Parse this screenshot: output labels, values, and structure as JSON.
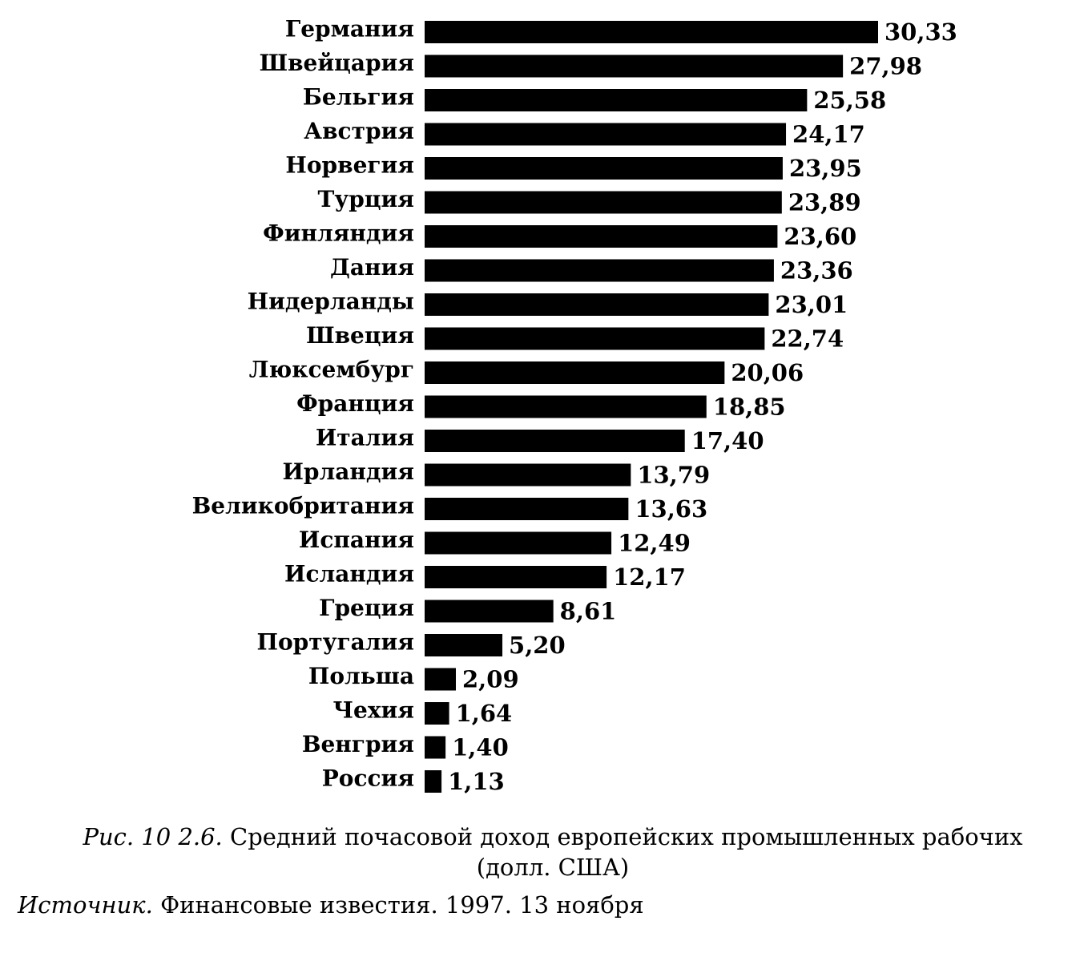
{
  "chart_data": {
    "type": "bar",
    "orientation": "horizontal",
    "categories": [
      "Германия",
      "Швейцария",
      "Бельгия",
      "Австрия",
      "Норвегия",
      "Турция",
      "Финляндия",
      "Дания",
      "Нидерланды",
      "Швеция",
      "Люксембург",
      "Франция",
      "Италия",
      "Ирландия",
      "Великобритания",
      "Испания",
      "Исландия",
      "Греция",
      "Португалия",
      "Польша",
      "Чехия",
      "Венгрия",
      "Россия"
    ],
    "values": [
      30.33,
      27.98,
      25.58,
      24.17,
      23.95,
      23.89,
      23.6,
      23.36,
      23.01,
      22.74,
      20.06,
      18.85,
      17.4,
      13.79,
      13.63,
      12.49,
      12.17,
      8.61,
      5.2,
      2.09,
      1.64,
      1.4,
      1.13
    ],
    "value_labels": [
      "30,33",
      "27,98",
      "25,58",
      "24,17",
      "23,95",
      "23,89",
      "23,60",
      "23,36",
      "23,01",
      "22,74",
      "20,06",
      "18,85",
      "17,40",
      "13,79",
      "13,63",
      "12,49",
      "12,17",
      "8,61",
      "5,20",
      "2,09",
      "1,64",
      "1,40",
      "1,13"
    ],
    "bar_color": "#000000",
    "xlim": [
      0,
      30.33
    ],
    "grid": false,
    "legend": false
  },
  "caption": {
    "figure_label": "Рис. 10 2.6.",
    "text": "Средний почасовой доход европейских промышленных рабочих (долл. США)"
  },
  "source": {
    "label": "Источник.",
    "text": "Финансовые известия. 1997. 13 ноября"
  }
}
